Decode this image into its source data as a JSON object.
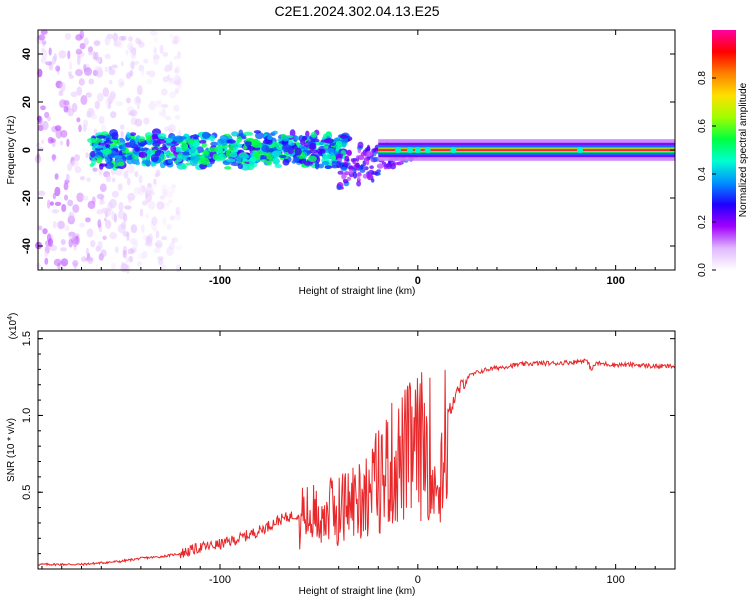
{
  "title": "C2E1.2024.302.04.13.E25",
  "colors": {
    "background": "#ffffff",
    "axis": "#000000",
    "snr_line": "#e8282a"
  },
  "chart_data": [
    {
      "type": "heatmap",
      "name": "spectrogram",
      "xlabel": "Height of straight line (km)",
      "ylabel": "Frequency (Hz)",
      "xlim": [
        -192,
        130
      ],
      "ylim": [
        -50,
        50
      ],
      "x_ticks": [
        -100,
        0,
        100
      ],
      "x_tick_labels": [
        "-100",
        "0",
        "100"
      ],
      "y_ticks": [
        -40,
        -20,
        0,
        20,
        40
      ],
      "y_tick_labels": [
        "-40",
        "-20",
        "0",
        "20",
        "40"
      ],
      "colorbar": {
        "label": "Normalized spectral amplitude",
        "range": [
          0,
          1
        ],
        "ticks": [
          0.0,
          0.2,
          0.4,
          0.6,
          0.8
        ],
        "tick_labels": [
          "0.0",
          "0.2",
          "0.4",
          "0.6",
          "0.8"
        ],
        "colormap": [
          "#ffffff",
          "#e0b8ff",
          "#a000ff",
          "#2000ff",
          "#0090ff",
          "#00ffd0",
          "#00ff40",
          "#a0ff00",
          "#ffe000",
          "#ff8000",
          "#ff0000",
          "#ff00a0"
        ]
      },
      "features": [
        {
          "region": "scattered noise",
          "x_range": [
            -192,
            -120
          ],
          "freq_range": [
            -50,
            50
          ],
          "amplitude": 0.1
        },
        {
          "region": "broad band",
          "x_range": [
            -165,
            -35
          ],
          "freq_range": [
            -10,
            10
          ],
          "amplitude": 0.35
        },
        {
          "region": "tail",
          "x_range": [
            -40,
            0
          ],
          "freq_range": [
            -20,
            3
          ],
          "amplitude": 0.2
        },
        {
          "region": "steady tone",
          "x_range": [
            -20,
            130
          ],
          "freq_range": [
            -1,
            1
          ],
          "amplitude": 0.95
        }
      ]
    },
    {
      "type": "line",
      "name": "snr",
      "xlabel": "Height of straight line (km)",
      "ylabel": "SNR (10 * v/v)",
      "scale_label": "(x10",
      "scale_exponent": "4",
      "xlim": [
        -192,
        130
      ],
      "ylim": [
        0,
        1.55
      ],
      "x_ticks": [
        -100,
        0,
        100
      ],
      "x_tick_labels": [
        "-100",
        "0",
        "100"
      ],
      "y_ticks": [
        0.5,
        1.0,
        1.5
      ],
      "y_tick_labels": [
        "0.5",
        "1.0",
        "1.5"
      ],
      "series": [
        {
          "name": "SNR",
          "x": [
            -192,
            -170,
            -150,
            -140,
            -130,
            -120,
            -110,
            -100,
            -90,
            -80,
            -70,
            -60,
            -50,
            -40,
            -30,
            -25,
            -20,
            -15,
            -10,
            -5,
            0,
            5,
            8,
            10,
            12,
            15,
            20,
            25,
            30,
            35,
            40,
            50,
            60,
            70,
            80,
            85,
            88,
            90,
            100,
            110,
            120,
            130
          ],
          "y": [
            0.03,
            0.03,
            0.05,
            0.07,
            0.08,
            0.1,
            0.14,
            0.16,
            0.2,
            0.25,
            0.32,
            0.36,
            0.38,
            0.42,
            0.5,
            0.55,
            0.62,
            0.72,
            0.75,
            0.82,
            0.85,
            0.9,
            0.75,
            0.5,
            0.75,
            1.0,
            1.15,
            1.25,
            1.28,
            1.3,
            1.31,
            1.33,
            1.34,
            1.34,
            1.35,
            1.36,
            1.3,
            1.34,
            1.33,
            1.33,
            1.32,
            1.32
          ]
        }
      ]
    }
  ]
}
